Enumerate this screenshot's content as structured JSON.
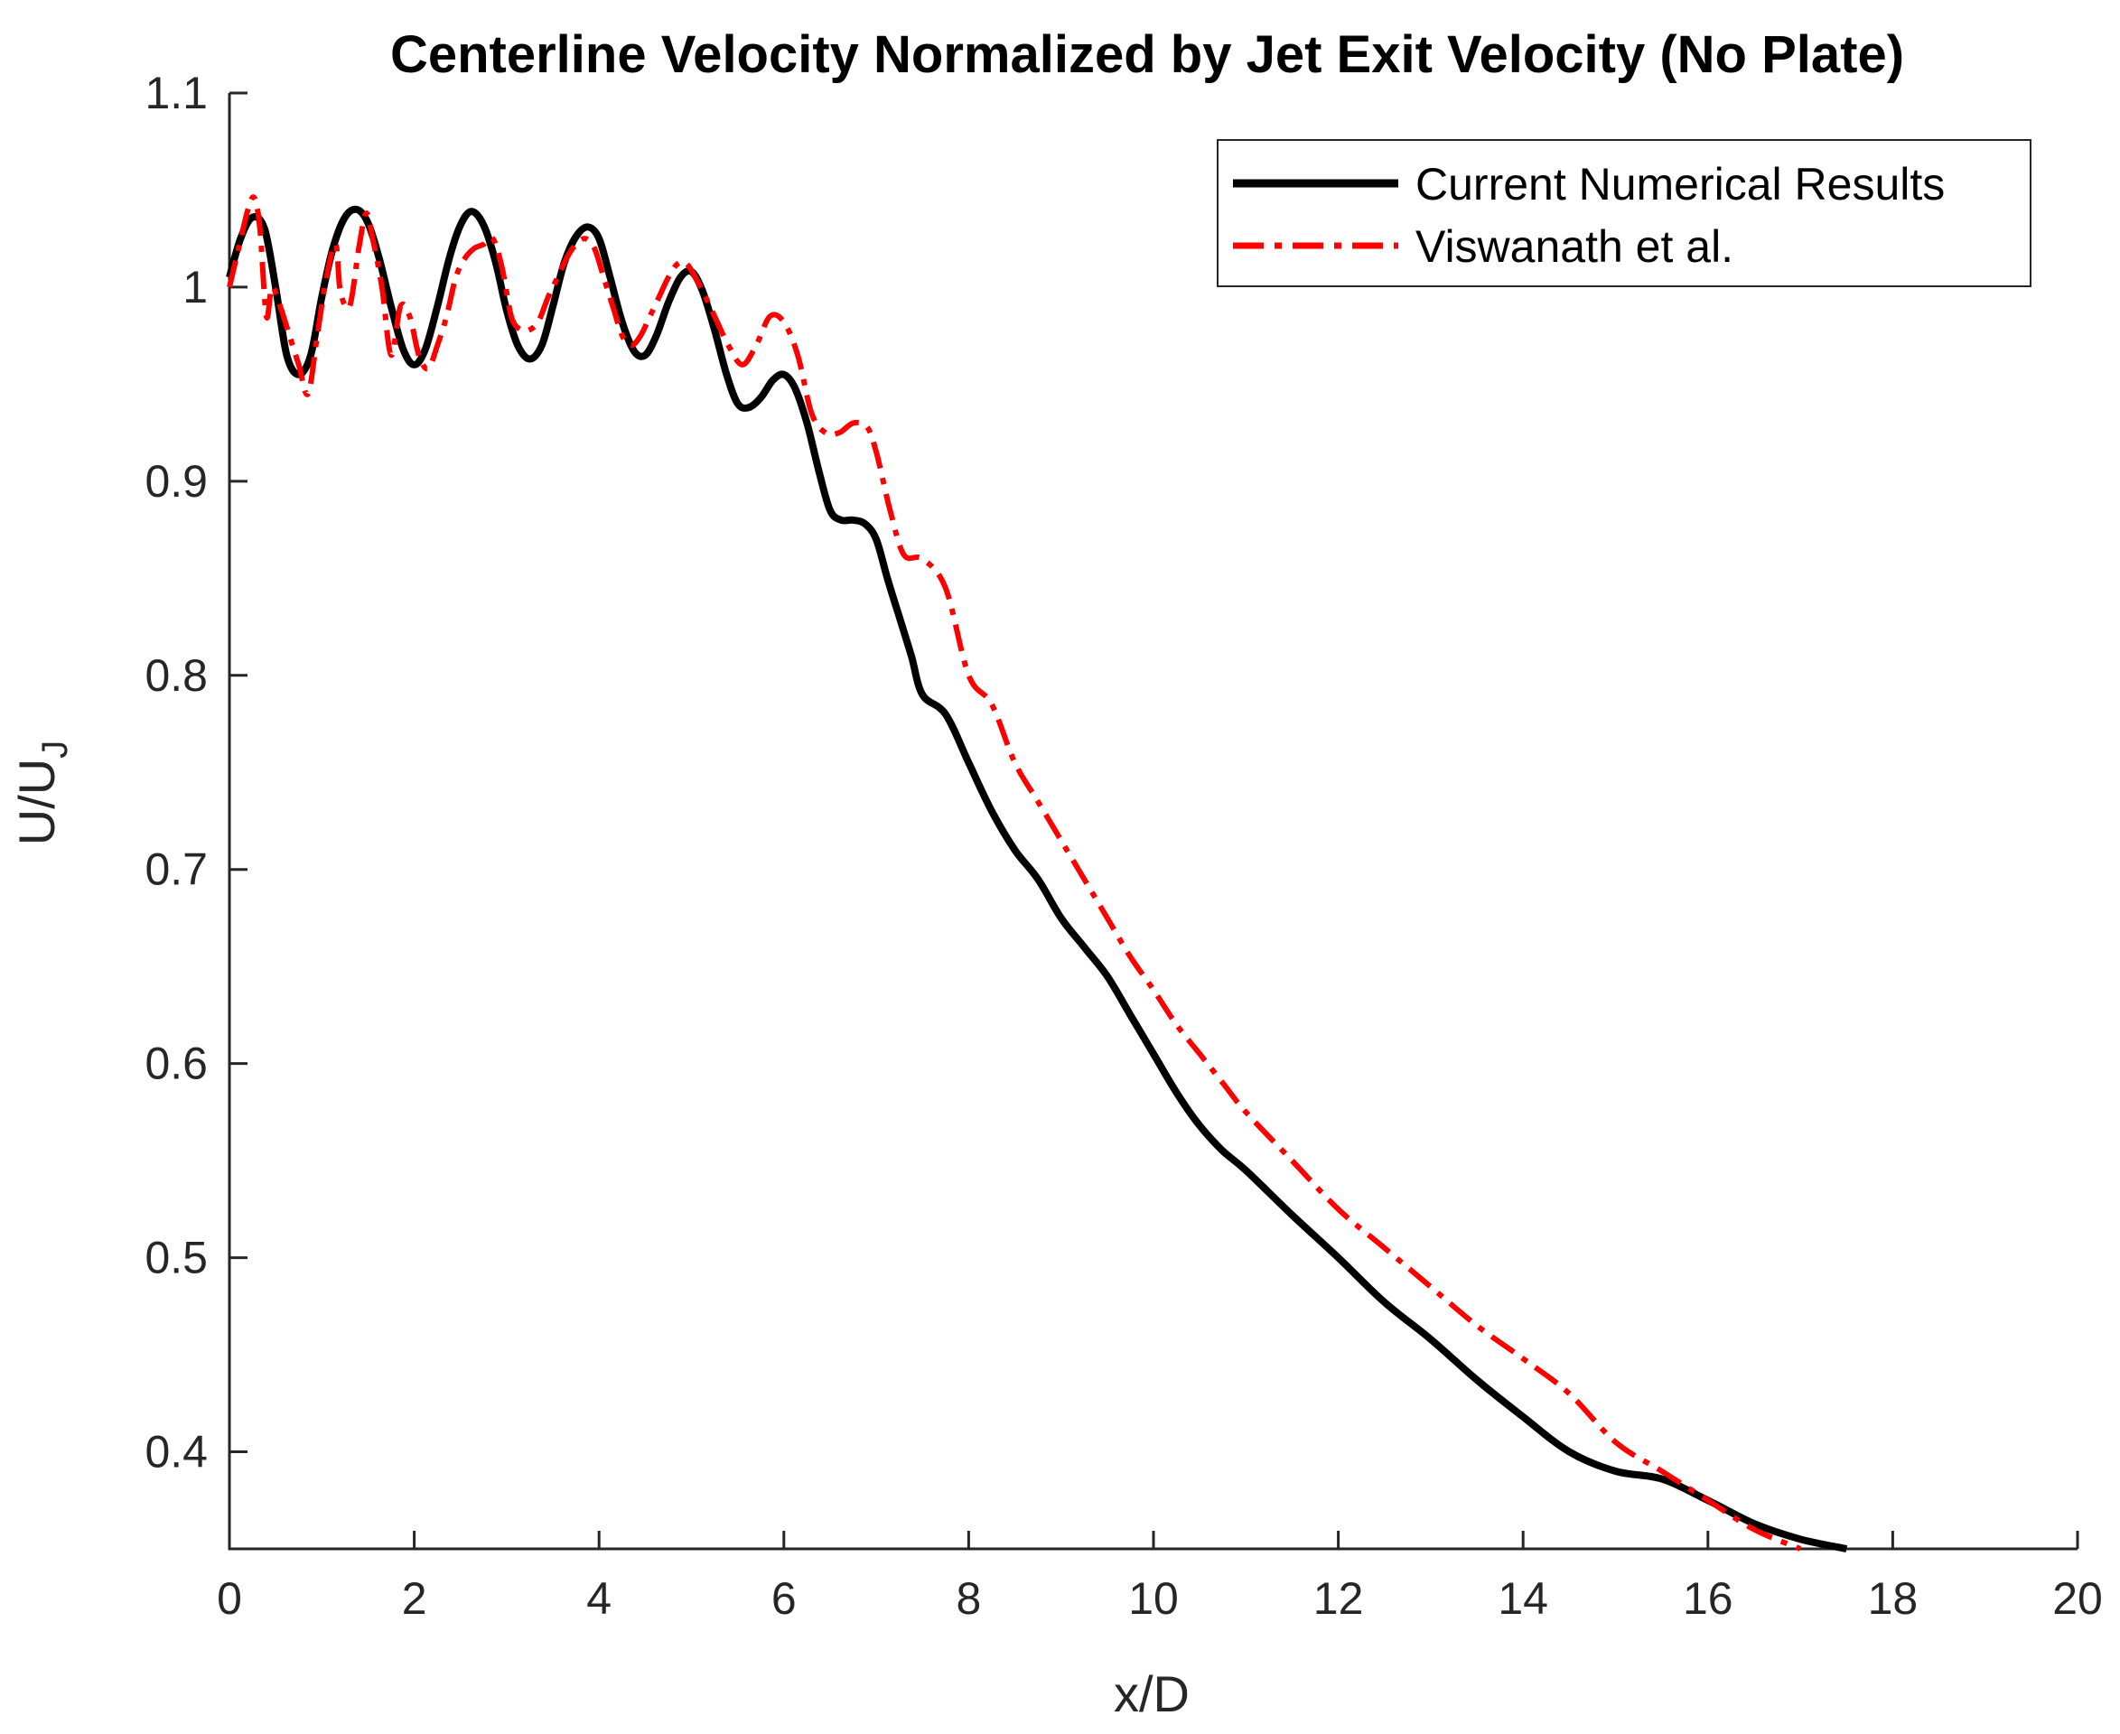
{
  "chart_data": {
    "type": "line",
    "title": "Centerline Velocity Normalized by Jet Exit Velocity (No Plate)",
    "xlabel": "x/D",
    "ylabel_main": "U/U",
    "ylabel_sub": "J",
    "xlim": [
      0,
      20
    ],
    "ylim": [
      0.35,
      1.1
    ],
    "xticks": [
      0,
      2,
      4,
      6,
      8,
      10,
      12,
      14,
      16,
      18,
      20
    ],
    "yticks": [
      0.4,
      0.5,
      0.6,
      0.7,
      0.8,
      0.9,
      1,
      1.1
    ],
    "xtick_labels": [
      "0",
      "2",
      "4",
      "6",
      "8",
      "10",
      "12",
      "14",
      "16",
      "18",
      "20"
    ],
    "ytick_labels": [
      "0.4",
      "0.5",
      "0.6",
      "0.7",
      "0.8",
      "0.9",
      "1",
      "1.1"
    ],
    "grid": false,
    "legend_position": "top-right",
    "series": [
      {
        "name": "Current Numerical Results",
        "color": "#000000",
        "style": "solid",
        "x": [
          0,
          0.12,
          0.25,
          0.38,
          0.5,
          0.62,
          0.75,
          0.88,
          1.0,
          1.12,
          1.25,
          1.38,
          1.5,
          1.62,
          1.75,
          1.88,
          2.0,
          2.12,
          2.25,
          2.38,
          2.5,
          2.62,
          2.75,
          2.88,
          3.0,
          3.12,
          3.25,
          3.38,
          3.5,
          3.62,
          3.75,
          3.88,
          4.0,
          4.12,
          4.25,
          4.38,
          4.5,
          4.62,
          4.75,
          4.88,
          5.0,
          5.12,
          5.25,
          5.38,
          5.5,
          5.62,
          5.75,
          5.88,
          6.0,
          6.12,
          6.25,
          6.38,
          6.5,
          6.62,
          6.75,
          6.88,
          7.0,
          7.12,
          7.25,
          7.38,
          7.5,
          7.75,
          8.0,
          8.25,
          8.5,
          8.75,
          9.0,
          9.25,
          9.5,
          9.75,
          10.0,
          10.25,
          10.5,
          10.75,
          11.0,
          11.5,
          12.0,
          12.5,
          13.0,
          13.5,
          14.0,
          14.5,
          15.0,
          15.5,
          16.0,
          16.5,
          17.0,
          17.5
        ],
        "y": [
          1.005,
          1.025,
          1.036,
          1.03,
          1.0,
          0.965,
          0.955,
          0.965,
          0.995,
          1.02,
          1.036,
          1.04,
          1.033,
          1.015,
          0.99,
          0.968,
          0.96,
          0.968,
          0.99,
          1.015,
          1.032,
          1.039,
          1.032,
          1.013,
          0.988,
          0.97,
          0.963,
          0.97,
          0.99,
          1.012,
          1.026,
          1.031,
          1.025,
          1.005,
          0.982,
          0.967,
          0.965,
          0.975,
          0.992,
          1.005,
          1.008,
          0.998,
          0.978,
          0.955,
          0.94,
          0.938,
          0.943,
          0.952,
          0.955,
          0.948,
          0.93,
          0.905,
          0.885,
          0.88,
          0.88,
          0.878,
          0.87,
          0.85,
          0.83,
          0.81,
          0.79,
          0.78,
          0.755,
          0.73,
          0.71,
          0.695,
          0.675,
          0.66,
          0.645,
          0.625,
          0.605,
          0.585,
          0.568,
          0.555,
          0.545,
          0.522,
          0.5,
          0.477,
          0.458,
          0.437,
          0.418,
          0.4,
          0.39,
          0.386,
          0.375,
          0.363,
          0.355,
          0.35
        ]
      },
      {
        "name": "Viswanath et al.",
        "color": "#ff0000",
        "style": "dashdot",
        "x": [
          0,
          0.1,
          0.2,
          0.27,
          0.33,
          0.4,
          0.46,
          0.55,
          0.65,
          0.75,
          0.85,
          0.95,
          1.05,
          1.15,
          1.2,
          1.3,
          1.4,
          1.48,
          1.55,
          1.65,
          1.75,
          1.85,
          1.95,
          2.05,
          2.15,
          2.25,
          2.35,
          2.45,
          2.55,
          2.65,
          2.75,
          2.85,
          2.95,
          3.05,
          3.15,
          3.25,
          3.35,
          3.45,
          3.55,
          3.65,
          3.75,
          3.85,
          3.95,
          4.05,
          4.15,
          4.25,
          4.35,
          4.45,
          4.55,
          4.65,
          4.75,
          4.85,
          4.95,
          5.1,
          5.25,
          5.4,
          5.55,
          5.7,
          5.85,
          6.0,
          6.15,
          6.3,
          6.45,
          6.6,
          6.75,
          6.9,
          7.0,
          7.15,
          7.3,
          7.5,
          7.75,
          8.0,
          8.25,
          8.5,
          8.75,
          9.0,
          9.25,
          9.5,
          9.75,
          10.0,
          10.25,
          10.5,
          10.75,
          11.0,
          11.5,
          12.0,
          12.5,
          13.0,
          13.5,
          14.0,
          14.5,
          15.0,
          15.5,
          16.0,
          16.5,
          17.0
        ],
        "y": [
          1.0,
          1.02,
          1.04,
          1.046,
          1.03,
          0.985,
          1.0,
          0.99,
          0.975,
          0.96,
          0.945,
          0.975,
          1.005,
          1.022,
          0.998,
          0.99,
          1.02,
          1.038,
          1.025,
          1.0,
          0.965,
          0.99,
          0.985,
          0.965,
          0.958,
          0.97,
          0.985,
          1.005,
          1.015,
          1.02,
          1.022,
          1.025,
          1.01,
          0.985,
          0.978,
          0.978,
          0.983,
          0.995,
          1.005,
          1.015,
          1.022,
          1.025,
          1.02,
          1.005,
          0.99,
          0.975,
          0.97,
          0.975,
          0.985,
          0.995,
          1.005,
          1.012,
          1.012,
          1.0,
          0.985,
          0.97,
          0.96,
          0.97,
          0.985,
          0.982,
          0.965,
          0.935,
          0.925,
          0.925,
          0.93,
          0.928,
          0.915,
          0.885,
          0.862,
          0.86,
          0.845,
          0.8,
          0.785,
          0.755,
          0.735,
          0.715,
          0.695,
          0.675,
          0.655,
          0.638,
          0.62,
          0.605,
          0.59,
          0.575,
          0.55,
          0.525,
          0.505,
          0.485,
          0.465,
          0.448,
          0.43,
          0.405,
          0.39,
          0.375,
          0.36,
          0.35
        ]
      }
    ]
  }
}
